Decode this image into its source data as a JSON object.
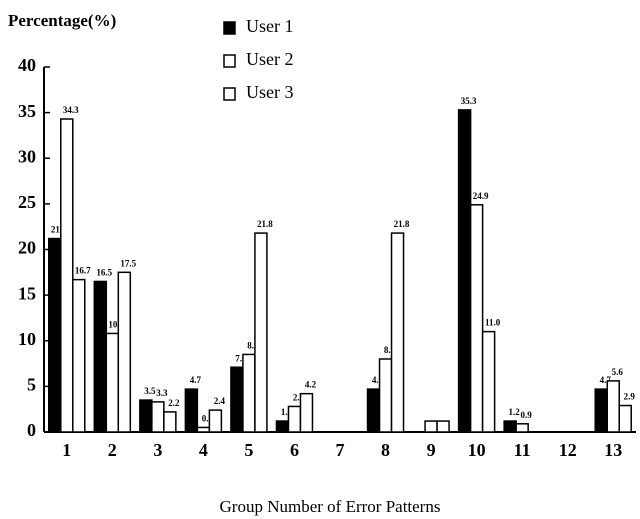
{
  "chart_data": {
    "type": "bar",
    "y_label": "Percentage(%)",
    "x_label": "Group Number of Error Patterns",
    "categories": [
      "1",
      "2",
      "3",
      "4",
      "5",
      "6",
      "7",
      "8",
      "9",
      "10",
      "11",
      "12",
      "13"
    ],
    "series": [
      {
        "name": "User 1",
        "color": "#000000",
        "values": [
          21.2,
          16.5,
          3.5,
          4.7,
          7.1,
          1.2,
          null,
          4.7,
          null,
          35.3,
          1.2,
          null,
          4.7
        ],
        "value_labels": [
          "21.2",
          "16.5",
          "3.5",
          "4.7",
          "7.1",
          "1.2",
          null,
          "4.7",
          null,
          "35.3",
          "1.2",
          null,
          "4.7"
        ]
      },
      {
        "name": "User 2",
        "color": "#ffffff",
        "values": [
          34.3,
          10.8,
          3.3,
          0.5,
          8.5,
          2.8,
          null,
          8.0,
          1.2,
          24.9,
          0.9,
          null,
          5.6
        ],
        "value_labels": [
          "34.3",
          "10.8",
          "3.3",
          "0.5",
          "8.5",
          "2.8",
          null,
          "8.0",
          null,
          "24.9",
          "0.9",
          null,
          "5.6"
        ]
      },
      {
        "name": "User 3",
        "color": "#ffffff",
        "values": [
          16.7,
          17.5,
          2.2,
          2.4,
          21.8,
          4.2,
          null,
          21.8,
          1.2,
          11.0,
          null,
          null,
          2.9
        ],
        "value_labels": [
          "16.7",
          "17.5",
          "2.2",
          "2.4",
          "21.8",
          "4.2",
          null,
          "21.8",
          null,
          "11.0",
          null,
          null,
          "2.9"
        ]
      }
    ],
    "ylim": [
      0,
      40
    ],
    "yticks": [
      0,
      5,
      10,
      15,
      20,
      25,
      30,
      35,
      40
    ],
    "grid": false,
    "legend": "top"
  }
}
